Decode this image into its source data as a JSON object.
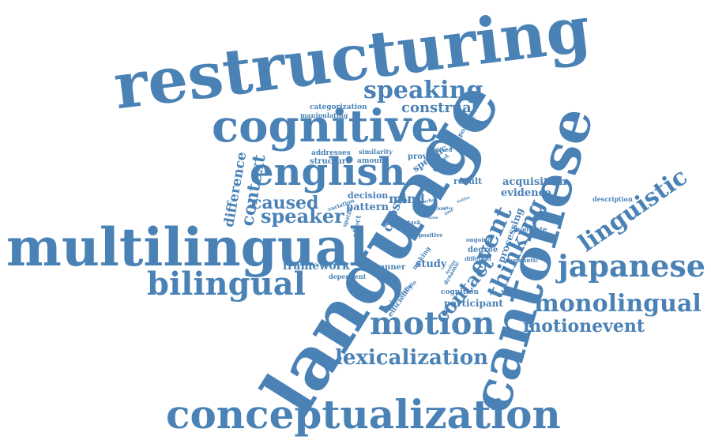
{
  "cloud": {
    "color": "#4a82b6",
    "words": [
      "restructuring",
      "cognitive",
      "english",
      "multilingual",
      "language",
      "cantonese",
      "speaking",
      "construal",
      "bilingual",
      "japanese",
      "monolingual",
      "motionevent",
      "conceptualization",
      "lexicalization",
      "motion",
      "linguistic",
      "speaker",
      "caused",
      "event",
      "thinking",
      "contact",
      "context",
      "difference",
      "framework",
      "mind",
      "cross",
      "pattern",
      "study",
      "acquisition",
      "evidence",
      "result",
      "processing",
      "participant",
      "efficiency",
      "manner",
      "specific",
      "provide",
      "structure",
      "amount",
      "addresses",
      "similarity",
      "categorization",
      "manipulating",
      "equipollent",
      "involved",
      "target",
      "decision",
      "variation",
      "spatial",
      "effect",
      "degree",
      "positive",
      "cognition",
      "immediate",
      "semantic",
      "different",
      "modulate",
      "dynamic",
      "ongoing",
      "description",
      "task",
      "making",
      "dependent",
      "verbal",
      "reaction",
      "proc",
      "state",
      "time",
      "finding",
      "offer",
      "native"
    ]
  }
}
